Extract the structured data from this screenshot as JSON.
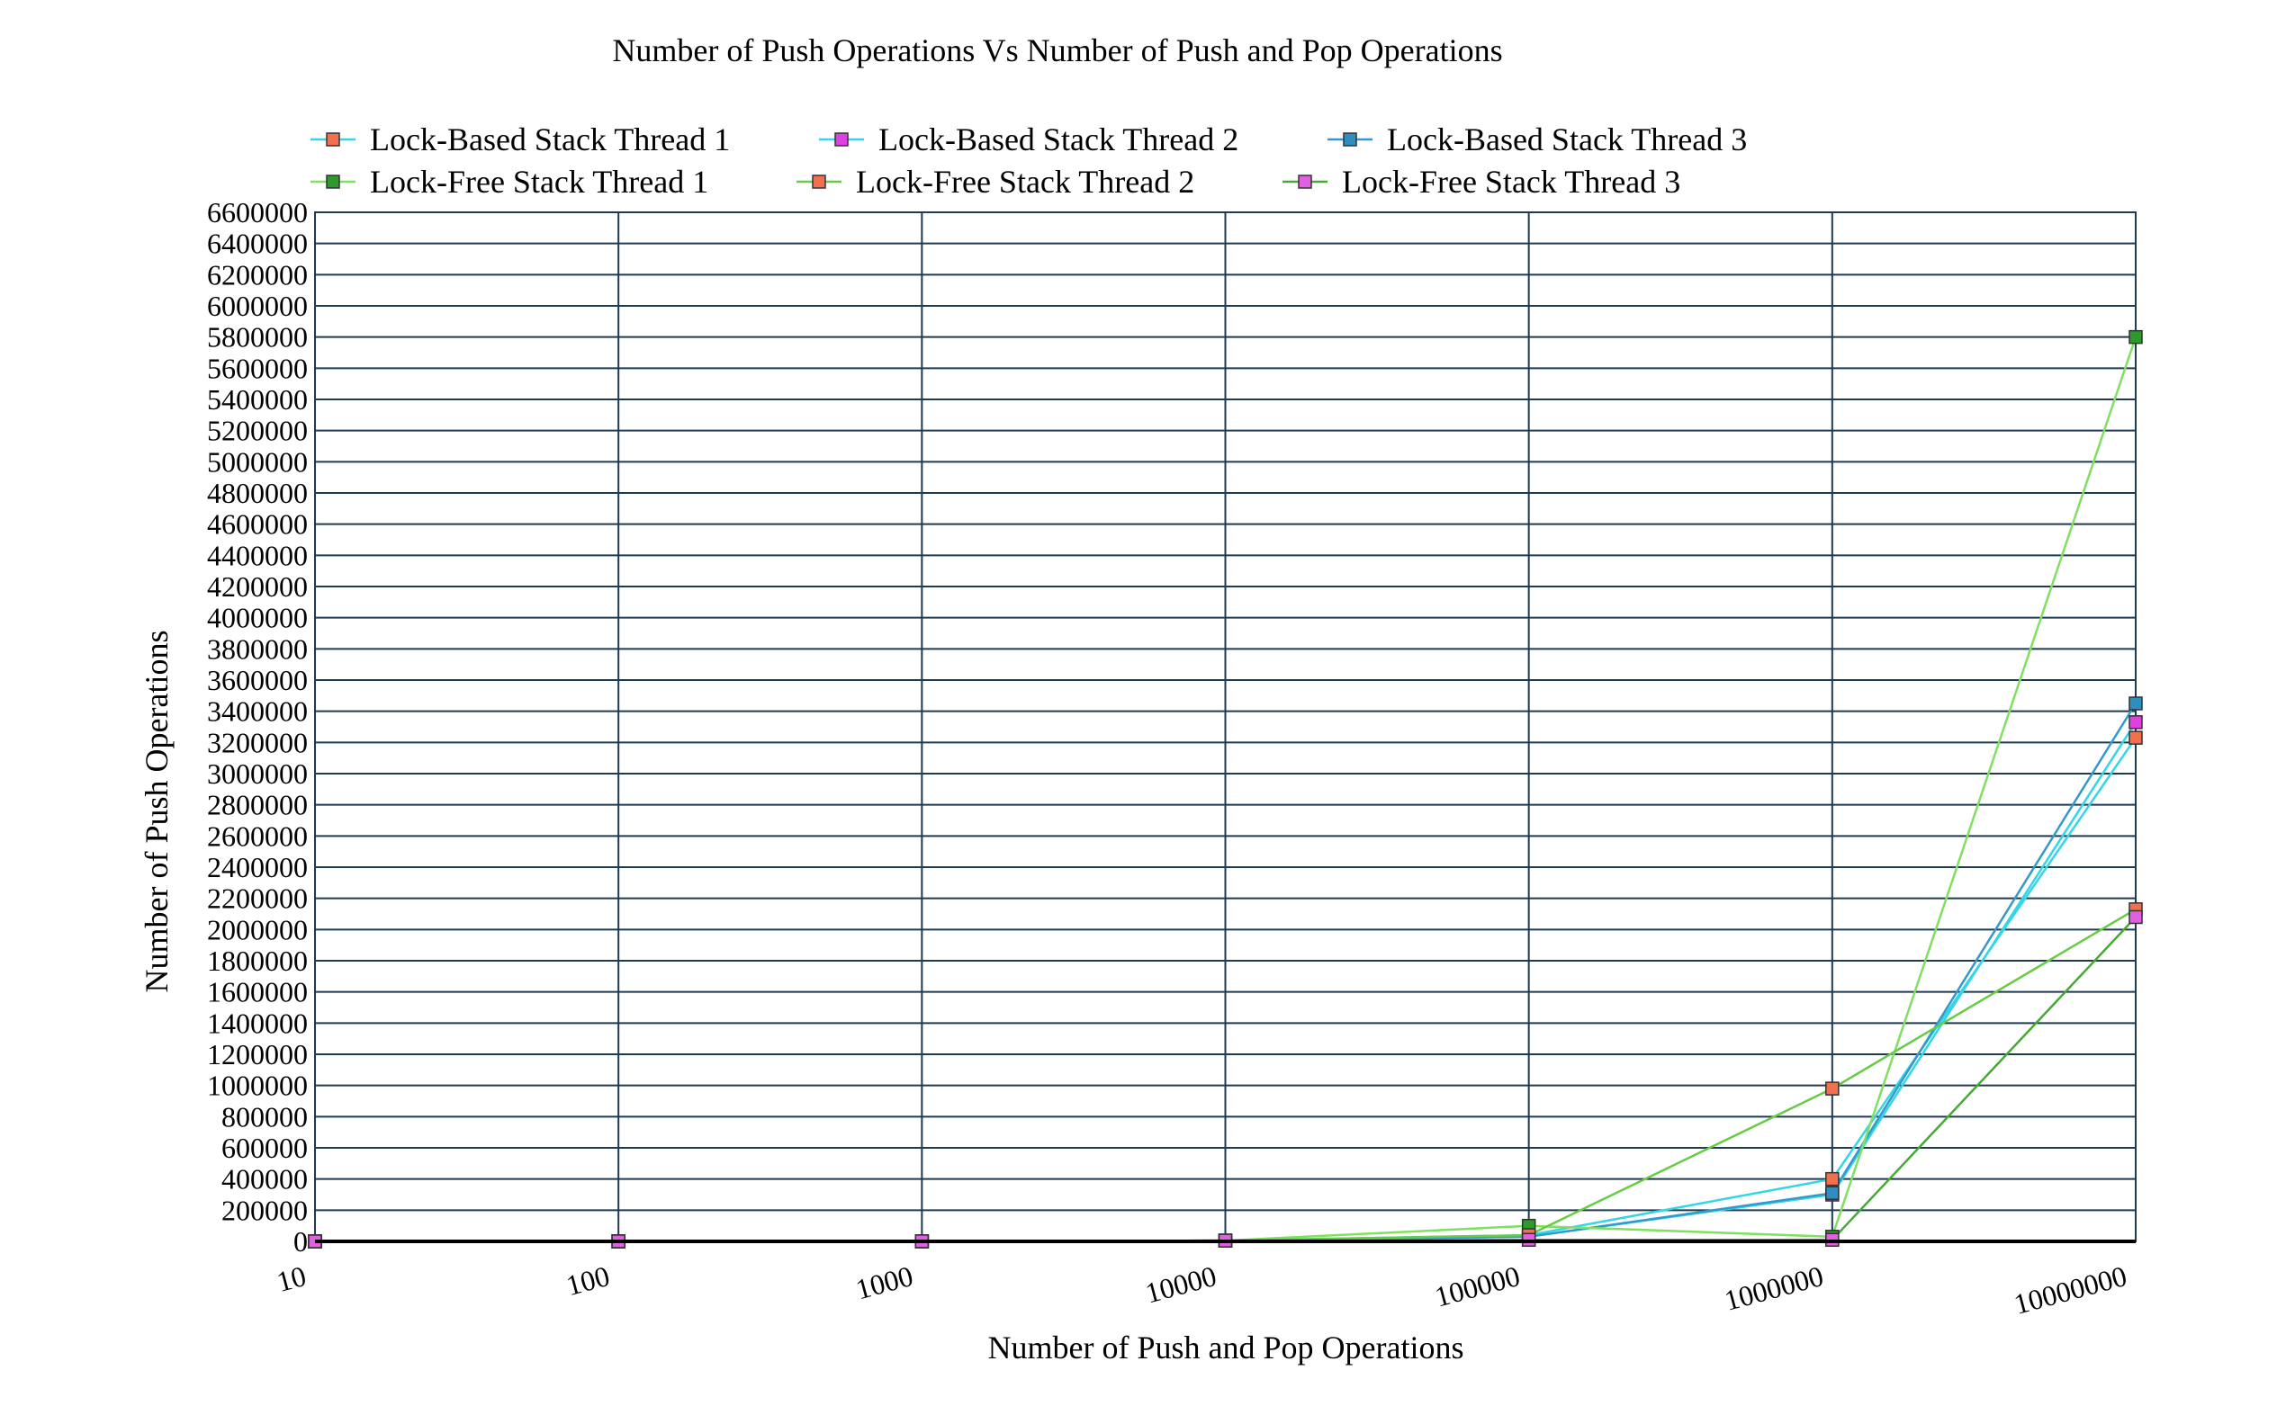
{
  "chart_data": {
    "type": "line",
    "title": "Number of Push Operations  Vs Number of Push and Pop Operations",
    "xlabel": "Number of Push and Pop Operations",
    "ylabel": "Number of Push Operations",
    "x": [
      10,
      100,
      1000,
      10000,
      100000,
      1000000,
      10000000
    ],
    "x_tick_labels": [
      "10",
      "100",
      "1000",
      "10000",
      "100000",
      "1000000",
      "10000000"
    ],
    "x_scale": "log",
    "ylim": [
      0,
      6600000
    ],
    "y_tick_step": 200000,
    "y_tick_labels": [
      "0",
      "200000",
      "400000",
      "600000",
      "800000",
      "1000000",
      "1200000",
      "1400000",
      "1600000",
      "1800000",
      "2000000",
      "2200000",
      "2400000",
      "2600000",
      "2800000",
      "3000000",
      "3200000",
      "3400000",
      "3600000",
      "3800000",
      "4000000",
      "4200000",
      "4400000",
      "4600000",
      "4800000",
      "5000000",
      "5200000",
      "5400000",
      "5600000",
      "5800000",
      "6000000",
      "6200000",
      "6400000",
      "6600000"
    ],
    "grid": true,
    "legend_position": "top",
    "series": [
      {
        "name": "Lock-Based Stack Thread 1",
        "line_color": "#33d6e6",
        "marker_color": "#f07050",
        "values": [
          5,
          50,
          500,
          5000,
          40000,
          400000,
          3230000
        ]
      },
      {
        "name": "Lock-Based Stack Thread 2",
        "line_color": "#33d6e6",
        "marker_color": "#e040e0",
        "values": [
          5,
          50,
          500,
          5000,
          30000,
          300000,
          3330000
        ]
      },
      {
        "name": "Lock-Based Stack Thread 3",
        "line_color": "#3399cc",
        "marker_color": "#2e8fbf",
        "values": [
          5,
          50,
          500,
          5000,
          30000,
          310000,
          3450000
        ]
      },
      {
        "name": "Lock-Free Stack Thread 1",
        "line_color": "#80e060",
        "marker_color": "#2e9a2e",
        "values": [
          5,
          50,
          500,
          5000,
          100000,
          30000,
          5800000
        ]
      },
      {
        "name": "Lock-Free Stack Thread 2",
        "line_color": "#66cc44",
        "marker_color": "#f07050",
        "values": [
          5,
          50,
          500,
          5000,
          40000,
          980000,
          2130000
        ]
      },
      {
        "name": "Lock-Free Stack Thread 3",
        "line_color": "#44aa33",
        "marker_color": "#e060e0",
        "values": [
          5,
          50,
          500,
          5000,
          10000,
          10000,
          2080000
        ]
      }
    ]
  }
}
